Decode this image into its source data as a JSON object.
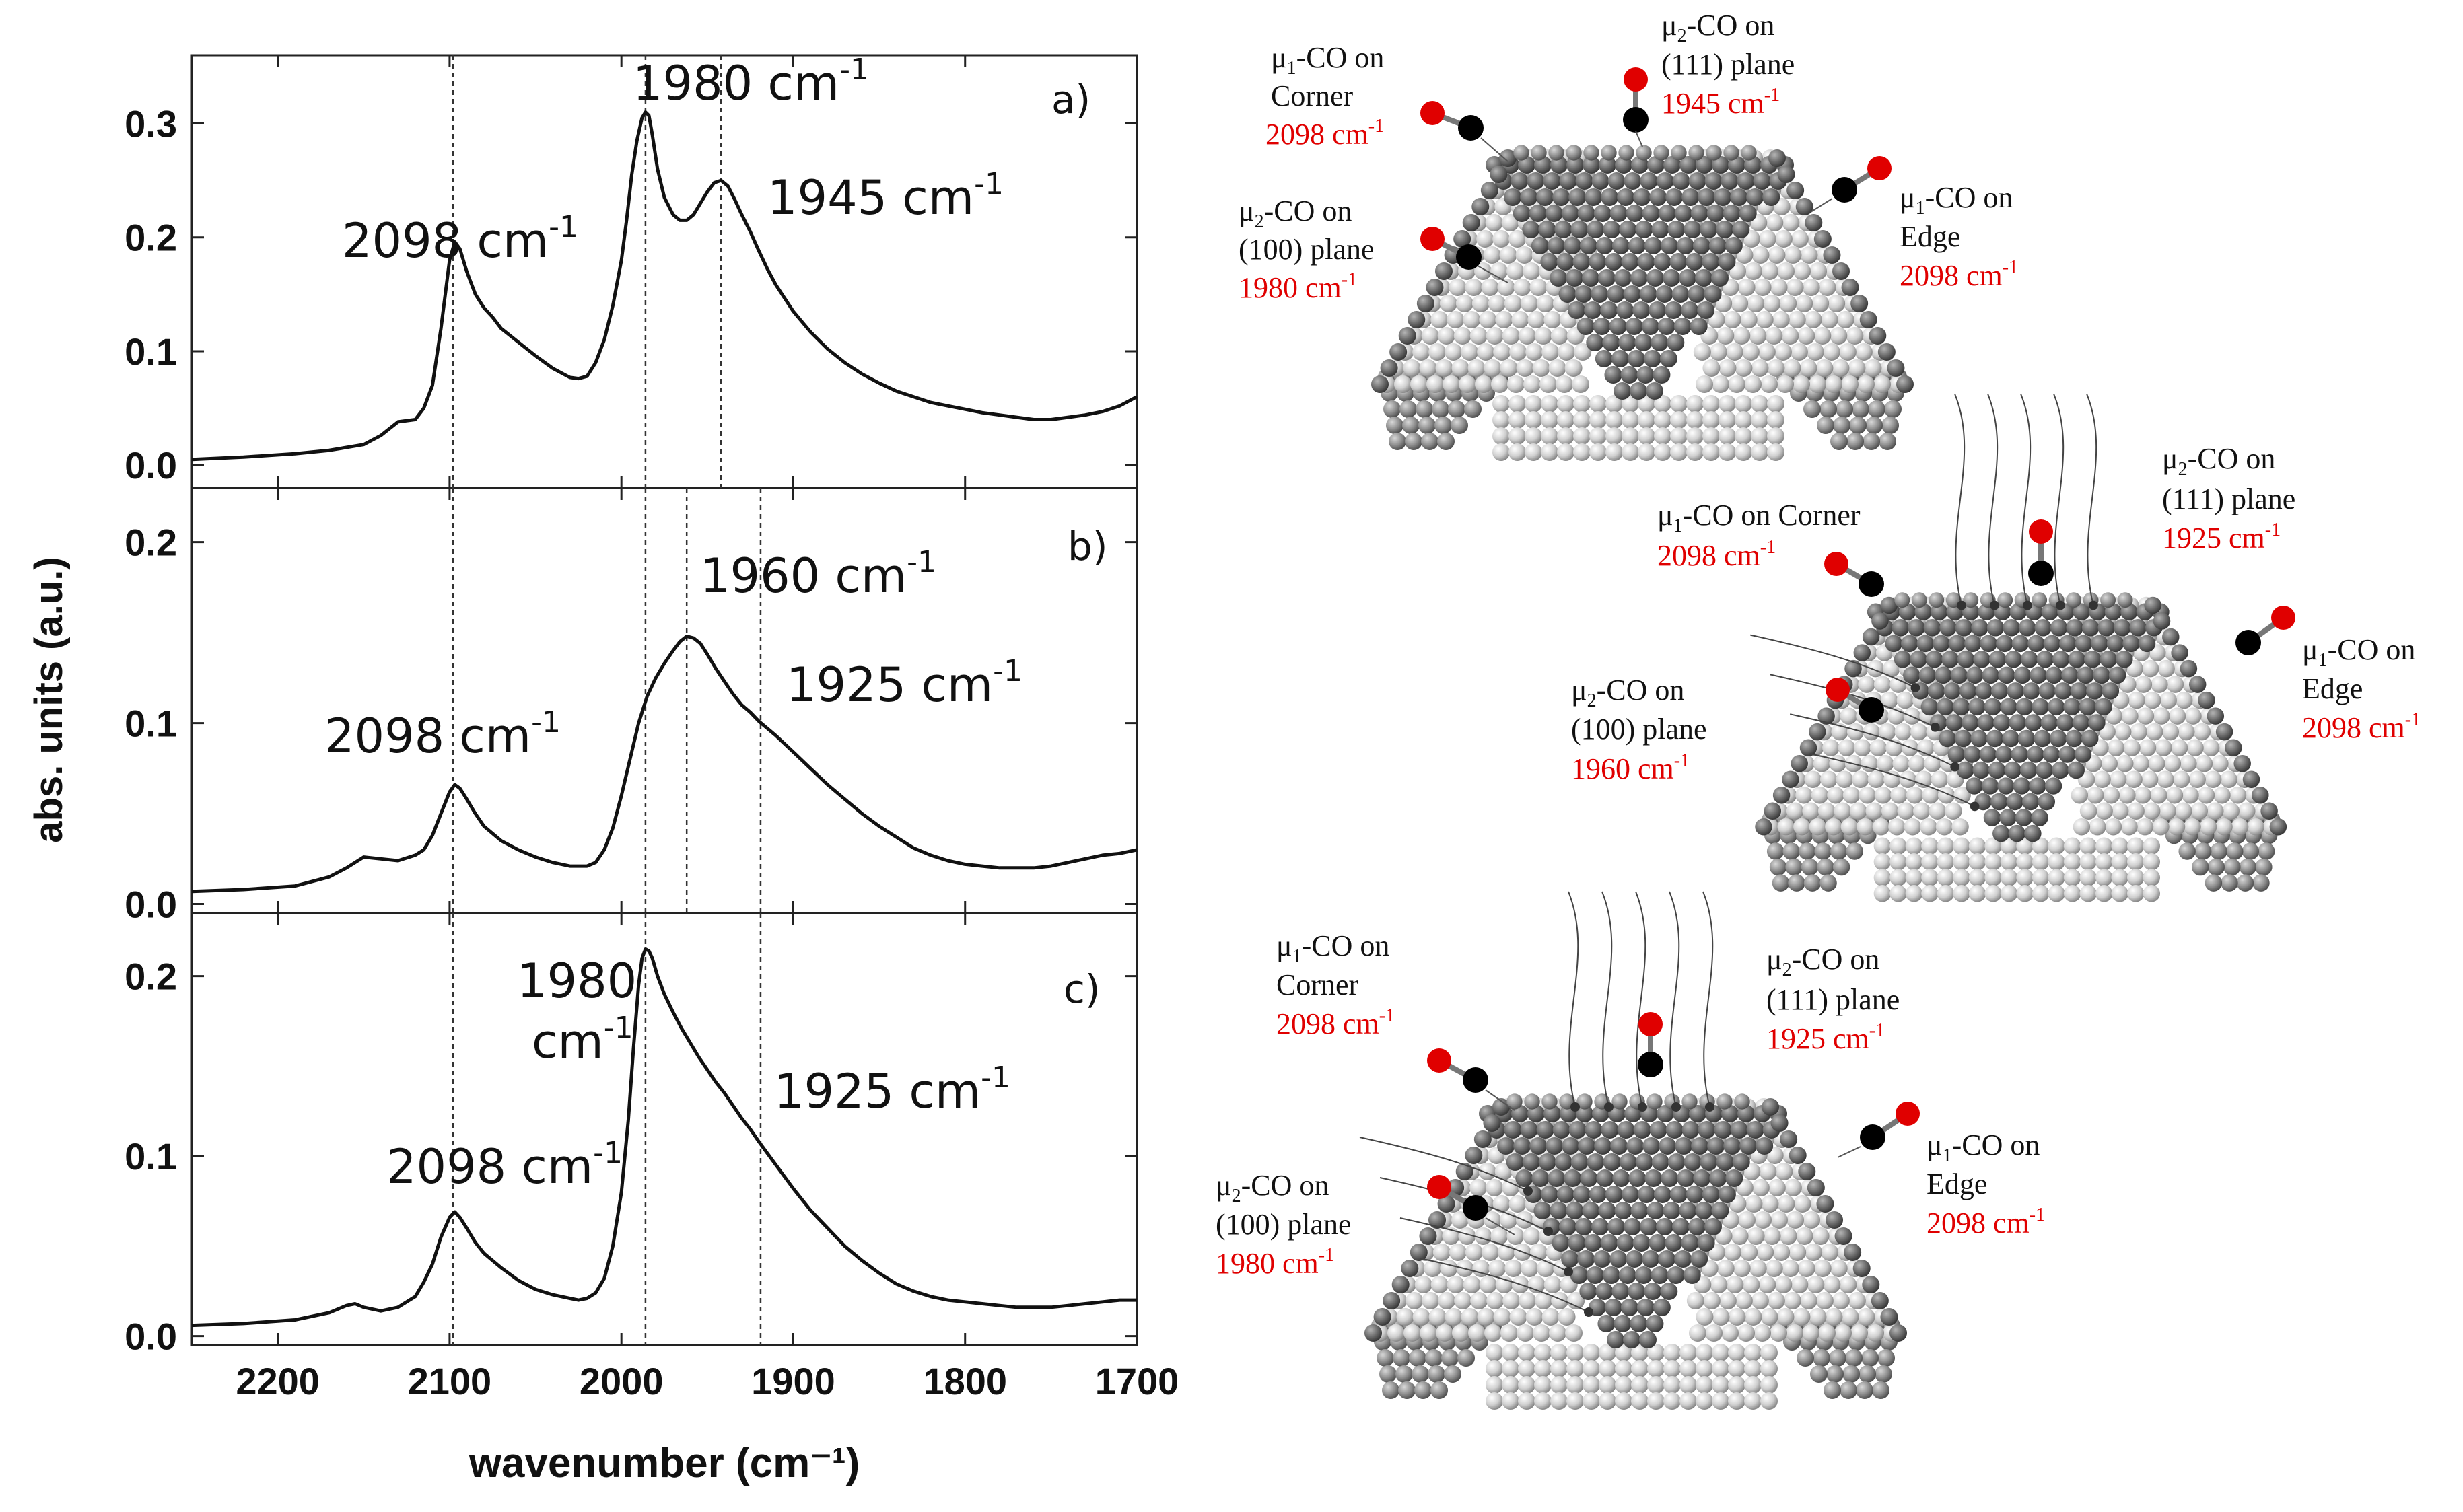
{
  "chart_data": {
    "type": "line",
    "xlabel": "wavenumber (cm⁻¹)",
    "ylabel": "abs. units (a.u.)",
    "xlim": [
      2250,
      1700
    ],
    "x_ticks": [
      "2200",
      "2100",
      "2000",
      "1900",
      "1800",
      "1700"
    ],
    "panels": [
      {
        "label": "a)",
        "ylim": [
          -0.02,
          0.36
        ],
        "y_ticks": [
          "0.0",
          "0.1",
          "0.2",
          "0.3"
        ],
        "y_tick_values": [
          0.0,
          0.1,
          0.2,
          0.3
        ],
        "vlines": [
          2098,
          1986,
          1942
        ],
        "annotations": [
          {
            "text": "2098 cm",
            "sup": "-1"
          },
          {
            "text": "1980 cm",
            "sup": "-1"
          },
          {
            "text": "1945 cm",
            "sup": "-1"
          }
        ],
        "x": [
          2250,
          2220,
          2190,
          2170,
          2150,
          2140,
          2130,
          2120,
          2115,
          2110,
          2105,
          2100,
          2097,
          2094,
          2090,
          2085,
          2080,
          2075,
          2070,
          2060,
          2050,
          2040,
          2030,
          2025,
          2020,
          2015,
          2010,
          2005,
          2000,
          1997,
          1994,
          1991,
          1988,
          1986,
          1984,
          1982,
          1979,
          1975,
          1970,
          1966,
          1962,
          1958,
          1954,
          1950,
          1946,
          1942,
          1938,
          1934,
          1930,
          1925,
          1920,
          1915,
          1910,
          1900,
          1890,
          1880,
          1870,
          1860,
          1850,
          1840,
          1830,
          1820,
          1810,
          1800,
          1790,
          1780,
          1770,
          1760,
          1750,
          1740,
          1730,
          1720,
          1710,
          1700
        ],
        "y": [
          0.005,
          0.007,
          0.01,
          0.013,
          0.018,
          0.026,
          0.038,
          0.04,
          0.05,
          0.07,
          0.12,
          0.18,
          0.196,
          0.19,
          0.17,
          0.15,
          0.138,
          0.13,
          0.12,
          0.108,
          0.096,
          0.085,
          0.077,
          0.076,
          0.078,
          0.09,
          0.11,
          0.14,
          0.18,
          0.215,
          0.255,
          0.285,
          0.305,
          0.31,
          0.307,
          0.29,
          0.26,
          0.235,
          0.22,
          0.215,
          0.215,
          0.22,
          0.23,
          0.24,
          0.248,
          0.25,
          0.245,
          0.233,
          0.22,
          0.205,
          0.188,
          0.172,
          0.158,
          0.135,
          0.117,
          0.102,
          0.09,
          0.08,
          0.072,
          0.065,
          0.06,
          0.055,
          0.052,
          0.049,
          0.046,
          0.044,
          0.042,
          0.04,
          0.04,
          0.042,
          0.044,
          0.047,
          0.052,
          0.06
        ]
      },
      {
        "label": "b)",
        "ylim": [
          -0.005,
          0.23
        ],
        "y_ticks": [
          "0.0",
          "0.1",
          "0.2"
        ],
        "y_tick_values": [
          0.0,
          0.1,
          0.2
        ],
        "vlines": [
          2098,
          1986,
          1962,
          1919
        ],
        "annotations": [
          {
            "text": "1960 cm",
            "sup": "-1"
          },
          {
            "text": "1925 cm",
            "sup": "-1"
          },
          {
            "text": "2098 cm",
            "sup": "-1"
          }
        ],
        "x": [
          2250,
          2220,
          2190,
          2170,
          2160,
          2150,
          2140,
          2130,
          2120,
          2115,
          2110,
          2105,
          2100,
          2097,
          2094,
          2090,
          2085,
          2080,
          2070,
          2060,
          2050,
          2040,
          2030,
          2020,
          2015,
          2010,
          2005,
          2000,
          1995,
          1990,
          1985,
          1980,
          1975,
          1970,
          1966,
          1962,
          1958,
          1954,
          1950,
          1945,
          1940,
          1935,
          1930,
          1925,
          1920,
          1910,
          1900,
          1890,
          1880,
          1870,
          1860,
          1850,
          1840,
          1830,
          1820,
          1810,
          1800,
          1790,
          1780,
          1770,
          1760,
          1750,
          1740,
          1730,
          1720,
          1710,
          1700
        ],
        "y": [
          0.007,
          0.008,
          0.01,
          0.015,
          0.02,
          0.026,
          0.025,
          0.024,
          0.027,
          0.03,
          0.038,
          0.05,
          0.062,
          0.066,
          0.064,
          0.058,
          0.05,
          0.043,
          0.035,
          0.03,
          0.026,
          0.023,
          0.021,
          0.021,
          0.023,
          0.03,
          0.042,
          0.06,
          0.08,
          0.1,
          0.115,
          0.125,
          0.133,
          0.14,
          0.145,
          0.148,
          0.147,
          0.144,
          0.138,
          0.13,
          0.123,
          0.116,
          0.11,
          0.106,
          0.101,
          0.093,
          0.084,
          0.075,
          0.066,
          0.058,
          0.05,
          0.043,
          0.037,
          0.031,
          0.027,
          0.024,
          0.022,
          0.021,
          0.02,
          0.02,
          0.02,
          0.021,
          0.023,
          0.025,
          0.027,
          0.028,
          0.03
        ]
      },
      {
        "label": "c)",
        "ylim": [
          -0.005,
          0.235
        ],
        "y_ticks": [
          "0.0",
          "0.1",
          "0.2"
        ],
        "y_tick_values": [
          0.0,
          0.1,
          0.2
        ],
        "vlines": [
          2098,
          1986,
          1919
        ],
        "annotations": [
          {
            "text": "1980",
            "sup": ""
          },
          {
            "text": "cm",
            "sup": "-1"
          },
          {
            "text": "1925 cm",
            "sup": "-1"
          },
          {
            "text": "2098 cm",
            "sup": "-1"
          }
        ],
        "x": [
          2250,
          2220,
          2190,
          2170,
          2160,
          2155,
          2150,
          2140,
          2130,
          2120,
          2115,
          2110,
          2105,
          2100,
          2097,
          2094,
          2090,
          2085,
          2080,
          2070,
          2060,
          2050,
          2040,
          2030,
          2025,
          2020,
          2015,
          2010,
          2005,
          2000,
          1996,
          1993,
          1990,
          1988,
          1986,
          1984,
          1982,
          1979,
          1975,
          1970,
          1965,
          1960,
          1955,
          1950,
          1945,
          1940,
          1935,
          1930,
          1925,
          1920,
          1910,
          1900,
          1890,
          1880,
          1870,
          1860,
          1850,
          1840,
          1830,
          1820,
          1810,
          1800,
          1790,
          1780,
          1770,
          1760,
          1750,
          1740,
          1730,
          1720,
          1710,
          1700
        ],
        "y": [
          0.006,
          0.007,
          0.009,
          0.013,
          0.017,
          0.018,
          0.016,
          0.014,
          0.016,
          0.022,
          0.03,
          0.04,
          0.055,
          0.066,
          0.069,
          0.066,
          0.06,
          0.052,
          0.046,
          0.038,
          0.031,
          0.026,
          0.023,
          0.021,
          0.02,
          0.021,
          0.024,
          0.032,
          0.05,
          0.08,
          0.12,
          0.16,
          0.195,
          0.21,
          0.215,
          0.214,
          0.21,
          0.2,
          0.19,
          0.18,
          0.171,
          0.163,
          0.155,
          0.148,
          0.141,
          0.135,
          0.128,
          0.121,
          0.115,
          0.108,
          0.095,
          0.082,
          0.07,
          0.06,
          0.05,
          0.042,
          0.035,
          0.029,
          0.025,
          0.022,
          0.02,
          0.019,
          0.018,
          0.017,
          0.016,
          0.016,
          0.016,
          0.017,
          0.018,
          0.019,
          0.02,
          0.02
        ]
      }
    ]
  },
  "models": [
    {
      "labels": [
        {
          "main": "μ",
          "sub": "1",
          "rest": "-CO on",
          "line2": "Corner",
          "value": "2098 cm",
          "sup": "-1"
        },
        {
          "main": "μ",
          "sub": "2",
          "rest": "-CO on",
          "line2": "(111) plane",
          "value": "1945 cm",
          "sup": "-1"
        },
        {
          "main": "μ",
          "sub": "2",
          "rest": "-CO on",
          "line2": "(100) plane",
          "value": "1980 cm",
          "sup": "-1"
        },
        {
          "main": "μ",
          "sub": "1",
          "rest": "-CO on",
          "line2": "Edge",
          "value": "2098 cm",
          "sup": "-1"
        }
      ]
    },
    {
      "labels": [
        {
          "main": "μ",
          "sub": "1",
          "rest": "-CO on Corner",
          "line2": "",
          "value": "2098 cm",
          "sup": "-1"
        },
        {
          "main": "μ",
          "sub": "2",
          "rest": "-CO on",
          "line2": "(111) plane",
          "value": "1925 cm",
          "sup": "-1"
        },
        {
          "main": "μ",
          "sub": "2",
          "rest": "-CO on",
          "line2": "(100) plane",
          "value": "1960 cm",
          "sup": "-1"
        },
        {
          "main": "μ",
          "sub": "1",
          "rest": "-CO on",
          "line2": "Edge",
          "value": "2098 cm",
          "sup": "-1"
        }
      ]
    },
    {
      "labels": [
        {
          "main": "μ",
          "sub": "1",
          "rest": "-CO on",
          "line2": "Corner",
          "value": "2098 cm",
          "sup": "-1"
        },
        {
          "main": "μ",
          "sub": "2",
          "rest": "-CO on",
          "line2": "(111) plane",
          "value": "1925 cm",
          "sup": "-1"
        },
        {
          "main": "μ",
          "sub": "2",
          "rest": "-CO on",
          "line2": "(100) plane",
          "value": "1980 cm",
          "sup": "-1"
        },
        {
          "main": "μ",
          "sub": "1",
          "rest": "-CO on",
          "line2": "Edge",
          "value": "2098 cm",
          "sup": "-1"
        }
      ]
    }
  ],
  "colors": {
    "line": "#111111",
    "label_value": "#e00000",
    "co_oxygen": "#e00000",
    "co_carbon": "#000000",
    "atom_light": "#d4d4d4",
    "atom_dark": "#6a6a6a",
    "atom_mid": "#9a9a9a"
  }
}
